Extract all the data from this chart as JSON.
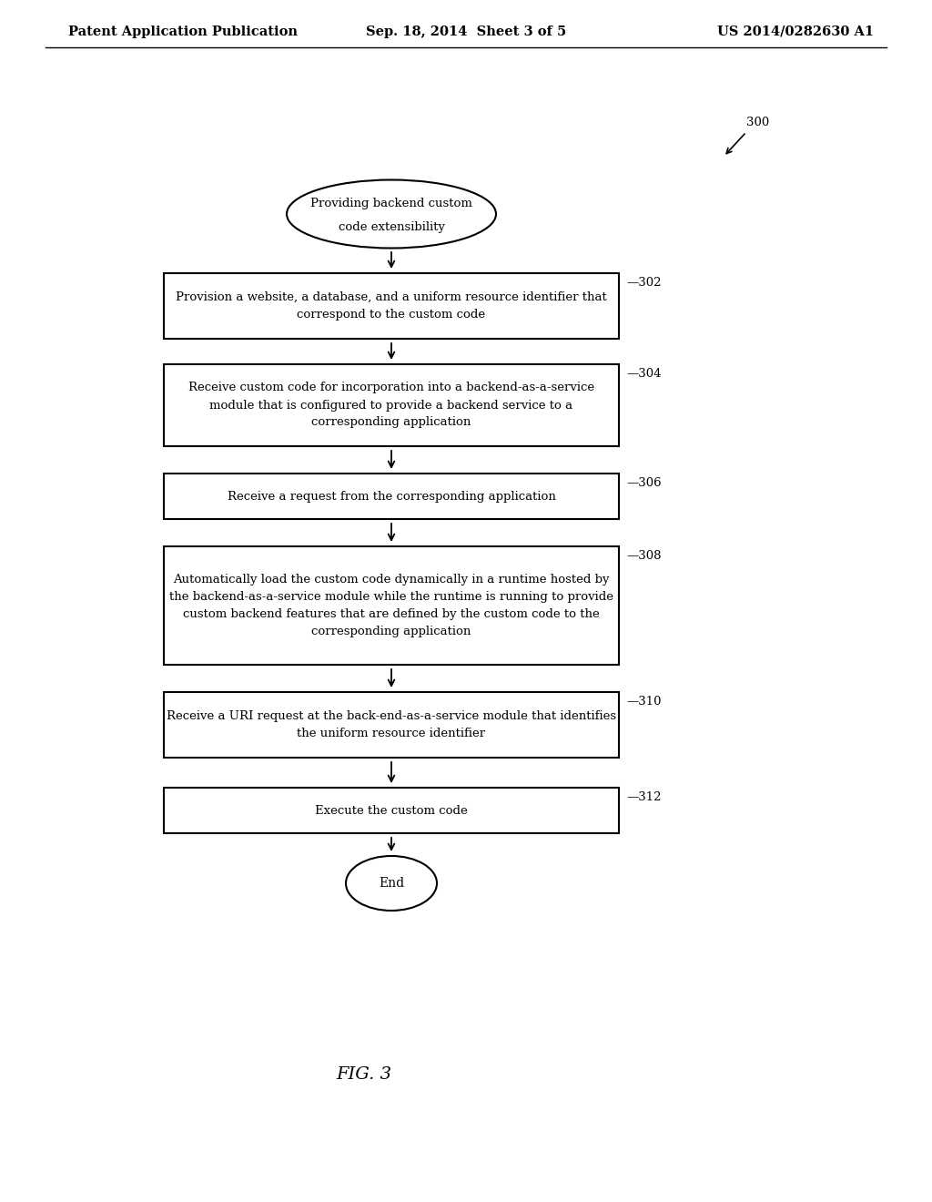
{
  "title_left": "Patent Application Publication",
  "title_center": "Sep. 18, 2014  Sheet 3 of 5",
  "title_right": "US 2014/0282630 A1",
  "fig_label": "FIG. 3",
  "ref_number": "300",
  "boxes": [
    {
      "label": "Provision a website, a database, and a uniform resource identifier that\ncorrespond to the custom code",
      "ref": "302"
    },
    {
      "label": "Receive custom code for incorporation into a backend-as-a-service\nmodule that is configured to provide a backend service to a\ncorresponding application",
      "ref": "304"
    },
    {
      "label": "Receive a request from the corresponding application",
      "ref": "306"
    },
    {
      "label": "Automatically load the custom code dynamically in a runtime hosted by\nthe backend-as-a-service module while the runtime is running to provide\ncustom backend features that are defined by the custom code to the\ncorresponding application",
      "ref": "308"
    },
    {
      "label": "Receive a URI request at the back-end-as-a-service module that identifies\nthe uniform resource identifier",
      "ref": "310"
    },
    {
      "label": "Execute the custom code",
      "ref": "312"
    }
  ],
  "bg_color": "#ffffff",
  "text_color": "#000000",
  "font_size_header": 10.5,
  "font_size_box": 9.5,
  "font_size_ref": 9.5,
  "font_size_fig": 14
}
